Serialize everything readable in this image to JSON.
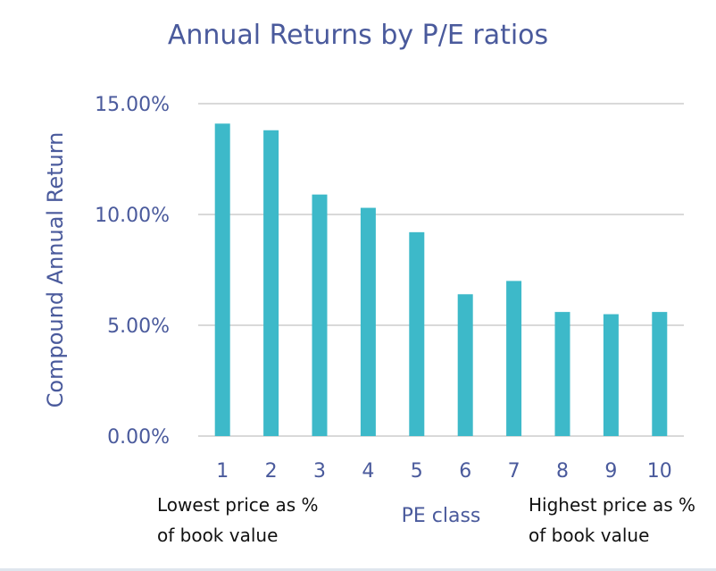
{
  "chart_data": {
    "type": "bar",
    "title": "Annual Returns by P/E ratios",
    "ylabel": "Compound Annual Return",
    "xlabel": "PE class",
    "categories": [
      "1",
      "2",
      "3",
      "4",
      "5",
      "6",
      "7",
      "8",
      "9",
      "10"
    ],
    "values": [
      14.1,
      13.8,
      10.9,
      10.3,
      9.2,
      6.4,
      7.0,
      5.6,
      5.5,
      5.6
    ],
    "ylim": [
      0,
      15
    ],
    "yticks": [
      "0.00%",
      "5.00%",
      "10.00%",
      "15.00%"
    ],
    "grid": true,
    "bar_color": "#3db9c9",
    "text_color": "#4a5a9c",
    "annotations": {
      "left": [
        "Lowest price as %",
        "of book value"
      ],
      "right": [
        "Highest price as %",
        "of book value"
      ]
    }
  }
}
